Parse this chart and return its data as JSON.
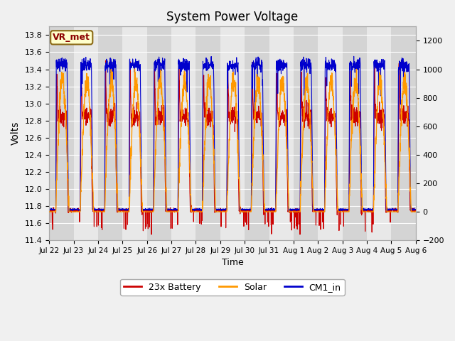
{
  "title": "System Power Voltage",
  "xlabel": "Time",
  "ylabel": "Volts",
  "xlim_start_days": 0,
  "xlim_end_days": 15,
  "ylim_left": [
    11.4,
    13.9
  ],
  "ylim_right": [
    -200,
    1300
  ],
  "yticks_left": [
    11.4,
    11.6,
    11.8,
    12.0,
    12.2,
    12.4,
    12.6,
    12.8,
    13.0,
    13.2,
    13.4,
    13.6,
    13.8
  ],
  "yticks_right": [
    -200,
    0,
    200,
    400,
    600,
    800,
    1000,
    1200
  ],
  "xtick_labels": [
    "Jul 22",
    "Jul 23",
    "Jul 24",
    "Jul 25",
    "Jul 26",
    "Jul 27",
    "Jul 28",
    "Jul 29",
    "Jul 30",
    "Jul 31",
    "Aug 1",
    "Aug 2",
    "Aug 3",
    "Aug 4",
    "Aug 5",
    "Aug 6"
  ],
  "color_battery": "#cc0000",
  "color_solar": "#ff9900",
  "color_cm1": "#0000cc",
  "annotation_text": "VR_met",
  "annotation_color": "#8b0000",
  "annotation_bg": "#ffffcc",
  "annotation_border": "#8b6914",
  "legend_labels": [
    "23x Battery",
    "Solar",
    "CM1_in"
  ],
  "band_color_light": "#e8e8e8",
  "band_color_dark": "#d4d4d4",
  "background_color": "#f0f0f0",
  "grid_color": "#ffffff"
}
